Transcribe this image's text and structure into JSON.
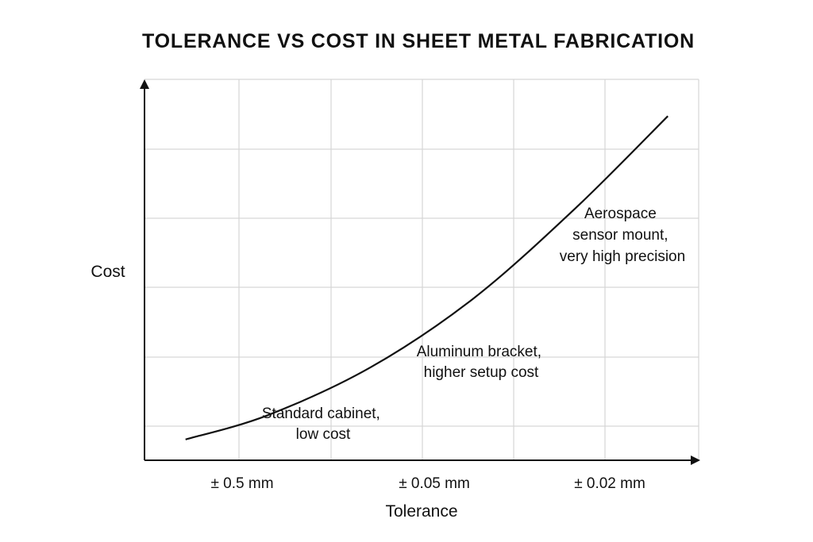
{
  "chart_data": {
    "type": "line",
    "title": "TOLERANCE VS COST IN SHEET METAL FABRICATION",
    "xlabel": "Tolerance",
    "ylabel": "Cost",
    "x_ticks": [
      "± 0.5 mm",
      "± 0.05 mm",
      "± 0.02 mm"
    ],
    "y_ticks_labeled": false,
    "grid": true,
    "series": [
      {
        "x": [
          0.1,
          0.5,
          1.0,
          1.5,
          2.0,
          2.45
        ],
        "y": [
          0.3,
          0.65,
          1.34,
          2.33,
          3.64,
          4.97
        ]
      }
    ],
    "xlim": [
      -0.1,
      2.6
    ],
    "ylim": [
      0,
      5.5
    ],
    "annotations": [
      {
        "lines": [
          "Standard cabinet,",
          "low cost"
        ]
      },
      {
        "lines": [
          "Aluminum bracket,",
          "higher setup cost"
        ]
      },
      {
        "lines": [
          "Aerospace",
          "sensor mount,",
          "very high precision"
        ]
      }
    ]
  }
}
